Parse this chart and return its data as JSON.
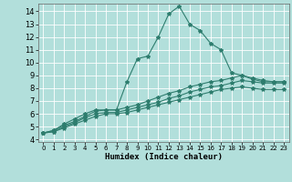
{
  "xlabel": "Humidex (Indice chaleur)",
  "bg_color": "#b2dfdb",
  "grid_color": "#ffffff",
  "line_color": "#2e7d6e",
  "xlim": [
    -0.5,
    23.5
  ],
  "ylim": [
    3.8,
    14.6
  ],
  "xticks": [
    0,
    1,
    2,
    3,
    4,
    5,
    6,
    7,
    8,
    9,
    10,
    11,
    12,
    13,
    14,
    15,
    16,
    17,
    18,
    19,
    20,
    21,
    22,
    23
  ],
  "yticks": [
    4,
    5,
    6,
    7,
    8,
    9,
    10,
    11,
    12,
    13,
    14
  ],
  "lines": [
    {
      "x": [
        0,
        1,
        2,
        3,
        4,
        5,
        6,
        7,
        8,
        9,
        10,
        11,
        12,
        13,
        14,
        15,
        16,
        17,
        18,
        19,
        20,
        21,
        22,
        23
      ],
      "y": [
        4.5,
        4.7,
        5.2,
        5.6,
        6.0,
        6.3,
        6.3,
        6.3,
        8.5,
        10.3,
        10.5,
        12.0,
        13.8,
        14.4,
        13.0,
        12.5,
        11.5,
        11.0,
        9.2,
        9.0,
        8.7,
        8.5,
        8.5,
        8.5
      ]
    },
    {
      "x": [
        0,
        1,
        2,
        3,
        4,
        5,
        6,
        7,
        8,
        9,
        10,
        11,
        12,
        13,
        14,
        15,
        16,
        17,
        18,
        19,
        20,
        21,
        22,
        23
      ],
      "y": [
        4.5,
        4.7,
        5.1,
        5.4,
        5.8,
        6.2,
        6.3,
        6.3,
        6.5,
        6.7,
        7.0,
        7.3,
        7.6,
        7.8,
        8.1,
        8.3,
        8.5,
        8.6,
        8.8,
        9.0,
        8.8,
        8.6,
        8.5,
        8.5
      ]
    },
    {
      "x": [
        0,
        1,
        2,
        3,
        4,
        5,
        6,
        7,
        8,
        9,
        10,
        11,
        12,
        13,
        14,
        15,
        16,
        17,
        18,
        19,
        20,
        21,
        22,
        23
      ],
      "y": [
        4.5,
        4.6,
        5.0,
        5.3,
        5.7,
        6.0,
        6.1,
        6.1,
        6.3,
        6.5,
        6.7,
        6.9,
        7.2,
        7.4,
        7.7,
        7.9,
        8.1,
        8.2,
        8.4,
        8.6,
        8.5,
        8.4,
        8.4,
        8.4
      ]
    },
    {
      "x": [
        0,
        1,
        2,
        3,
        4,
        5,
        6,
        7,
        8,
        9,
        10,
        11,
        12,
        13,
        14,
        15,
        16,
        17,
        18,
        19,
        20,
        21,
        22,
        23
      ],
      "y": [
        4.5,
        4.6,
        4.9,
        5.2,
        5.5,
        5.8,
        6.0,
        6.0,
        6.1,
        6.3,
        6.5,
        6.7,
        6.9,
        7.1,
        7.3,
        7.5,
        7.7,
        7.9,
        8.0,
        8.1,
        8.0,
        7.9,
        7.9,
        7.9
      ]
    }
  ]
}
